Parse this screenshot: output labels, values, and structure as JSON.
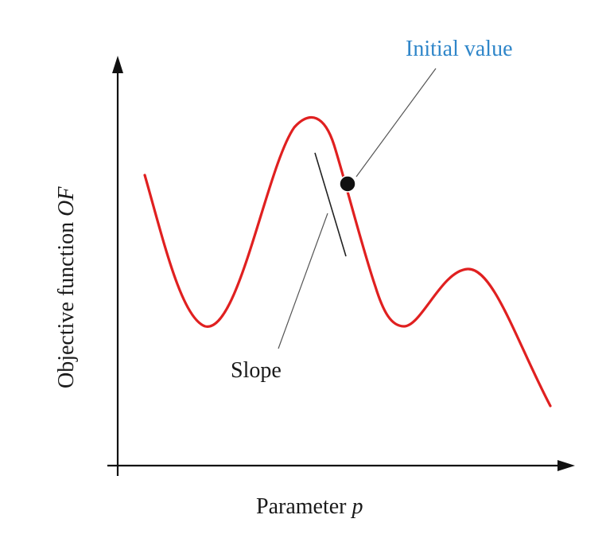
{
  "colors": {
    "curve": "#e02020",
    "axis": "#111111",
    "point": "#111111",
    "initial_value_label": "#2f86c9",
    "text": "#1a1a1a",
    "leader": "#555555"
  },
  "labels": {
    "initial_value": "Initial value",
    "slope": "Slope",
    "x_axis_text": "Parameter ",
    "x_axis_symbol": "p",
    "y_axis_text": "Objective function ",
    "y_axis_symbol": "OF"
  }
}
